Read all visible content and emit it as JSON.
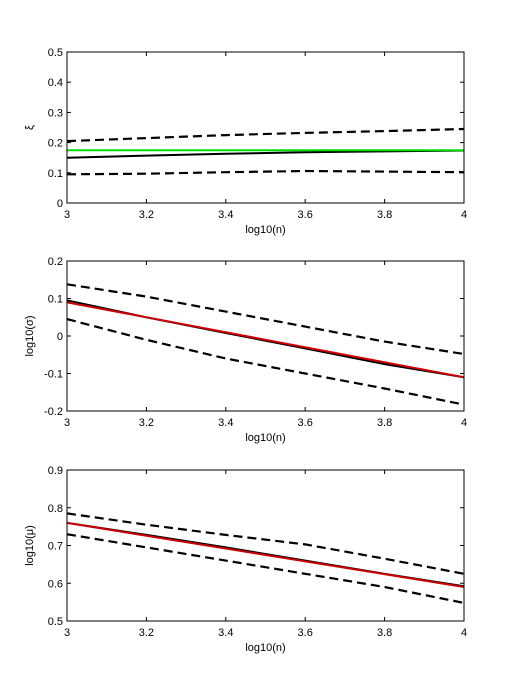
{
  "chart_data": [
    {
      "type": "line",
      "xlabel": "log10(n)",
      "ylabel": "ξ",
      "xlim": [
        3,
        4
      ],
      "ylim": [
        0,
        0.5
      ],
      "xticks": [
        "3",
        "3.2",
        "3.4",
        "3.6",
        "3.8",
        "4"
      ],
      "yticks": [
        "0",
        "0.1",
        "0.2",
        "0.3",
        "0.4",
        "0.5"
      ],
      "grid": false,
      "legend": "none",
      "series": [
        {
          "style": "dashed",
          "color": "#000000",
          "x": [
            3,
            3.2,
            3.4,
            3.6,
            3.8,
            4
          ],
          "y": [
            0.205,
            0.215,
            0.225,
            0.232,
            0.238,
            0.245
          ]
        },
        {
          "style": "solid",
          "color": "#000000",
          "x": [
            3,
            3.2,
            3.4,
            3.6,
            3.8,
            4
          ],
          "y": [
            0.15,
            0.157,
            0.163,
            0.168,
            0.171,
            0.174
          ]
        },
        {
          "style": "solid",
          "color": "#00dd00",
          "x": [
            3,
            4
          ],
          "y": [
            0.175,
            0.175
          ]
        },
        {
          "style": "dashed",
          "color": "#000000",
          "x": [
            3,
            3.2,
            3.4,
            3.6,
            3.8,
            4
          ],
          "y": [
            0.095,
            0.097,
            0.102,
            0.106,
            0.104,
            0.102
          ]
        }
      ]
    },
    {
      "type": "line",
      "xlabel": "log10(n)",
      "ylabel": "log10(σ)",
      "xlim": [
        3,
        4
      ],
      "ylim": [
        -0.2,
        0.2
      ],
      "xticks": [
        "3",
        "3.2",
        "3.4",
        "3.6",
        "3.8",
        "4"
      ],
      "yticks": [
        "-0.2",
        "-0.1",
        "0",
        "0.1",
        "0.2"
      ],
      "grid": false,
      "legend": "none",
      "series": [
        {
          "style": "dashed",
          "color": "#000000",
          "x": [
            3,
            3.2,
            3.4,
            3.6,
            3.8,
            4
          ],
          "y": [
            0.138,
            0.105,
            0.065,
            0.025,
            -0.015,
            -0.048
          ]
        },
        {
          "style": "solid",
          "color": "#000000",
          "x": [
            3,
            3.2,
            3.4,
            3.6,
            3.8,
            4
          ],
          "y": [
            0.095,
            0.05,
            0.008,
            -0.033,
            -0.075,
            -0.11
          ]
        },
        {
          "style": "solid",
          "color": "#cc0000",
          "x": [
            3,
            4
          ],
          "y": [
            0.09,
            -0.11
          ]
        },
        {
          "style": "dashed",
          "color": "#000000",
          "x": [
            3,
            3.2,
            3.4,
            3.6,
            3.8,
            4
          ],
          "y": [
            0.045,
            -0.01,
            -0.06,
            -0.1,
            -0.14,
            -0.183
          ]
        }
      ]
    },
    {
      "type": "line",
      "xlabel": "log10(n)",
      "ylabel": "log10(μ)",
      "xlim": [
        3,
        4
      ],
      "ylim": [
        0.5,
        0.9
      ],
      "xticks": [
        "3",
        "3.2",
        "3.4",
        "3.6",
        "3.8",
        "4"
      ],
      "yticks": [
        "0.5",
        "0.6",
        "0.7",
        "0.8",
        "0.9"
      ],
      "grid": false,
      "legend": "none",
      "series": [
        {
          "style": "dashed",
          "color": "#000000",
          "x": [
            3,
            3.2,
            3.4,
            3.6,
            3.8,
            4
          ],
          "y": [
            0.785,
            0.755,
            0.728,
            0.703,
            0.665,
            0.625
          ]
        },
        {
          "style": "solid",
          "color": "#000000",
          "x": [
            3,
            3.2,
            3.4,
            3.6,
            3.8,
            4
          ],
          "y": [
            0.76,
            0.728,
            0.695,
            0.66,
            0.625,
            0.592
          ]
        },
        {
          "style": "solid",
          "color": "#cc0000",
          "x": [
            3,
            4
          ],
          "y": [
            0.76,
            0.59
          ]
        },
        {
          "style": "dashed",
          "color": "#000000",
          "x": [
            3,
            3.2,
            3.4,
            3.6,
            3.8,
            4
          ],
          "y": [
            0.73,
            0.695,
            0.66,
            0.625,
            0.59,
            0.548
          ]
        }
      ]
    }
  ]
}
